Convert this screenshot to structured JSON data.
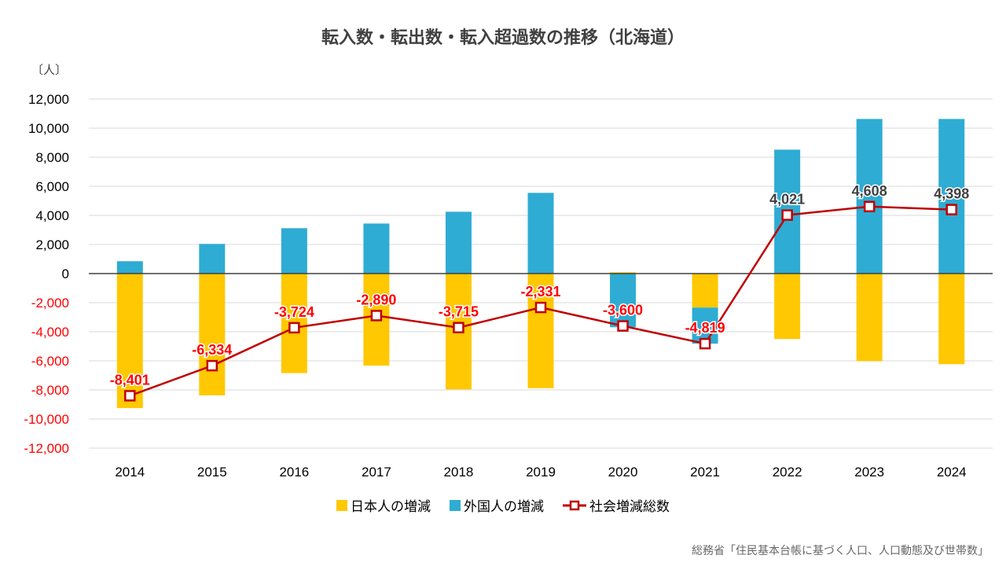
{
  "chart_data": {
    "type": "bar",
    "title": "転入数・転出数・転入超過数の推移（北海道）",
    "unit_label": "〔人〕",
    "categories": [
      "2014",
      "2015",
      "2016",
      "2017",
      "2018",
      "2019",
      "2020",
      "2021",
      "2022",
      "2023",
      "2024"
    ],
    "ylim": [
      -12000,
      12000
    ],
    "yticks": [
      12000,
      10000,
      8000,
      6000,
      4000,
      2000,
      0,
      -2000,
      -4000,
      -6000,
      -8000,
      -10000,
      -12000
    ],
    "ytick_labels": [
      "12,000",
      "10,000",
      "8,000",
      "6,000",
      "4,000",
      "2,000",
      "0",
      "-2,000",
      "-4,000",
      "-6,000",
      "-8,000",
      "-10,000",
      "-12,000"
    ],
    "grid": true,
    "stacked": true,
    "legend_position": "bottom",
    "series": [
      {
        "name": "日本人の増減",
        "type": "bar",
        "color": "#FFC800",
        "values": [
          -9250,
          -8374,
          -6844,
          -6330,
          -7965,
          -7881,
          90,
          -2340,
          -4499,
          -6022,
          -6232
        ]
      },
      {
        "name": "外国人の増減",
        "type": "bar",
        "color": "#2EACD3",
        "values": [
          849,
          2040,
          3120,
          3440,
          4250,
          5550,
          -3690,
          -2479,
          8520,
          10630,
          10630
        ]
      },
      {
        "name": "社会増減総数",
        "type": "line",
        "color": "#C00000",
        "values": [
          -8401,
          -6334,
          -3724,
          -2890,
          -3715,
          -2331,
          -3600,
          -4819,
          4021,
          4608,
          4398
        ],
        "labels": [
          "-8,401",
          "-6,334",
          "-3,724",
          "-2,890",
          "-3,715",
          "-2,331",
          "-3,600",
          "-4,819",
          "4,021",
          "4,608",
          "4,398"
        ]
      }
    ],
    "negative_label_color": "#FF0000",
    "positive_label_color": "#404040"
  },
  "source": "総務省「住民基本台帳に基づく人口、人口動態及び世帯数」"
}
